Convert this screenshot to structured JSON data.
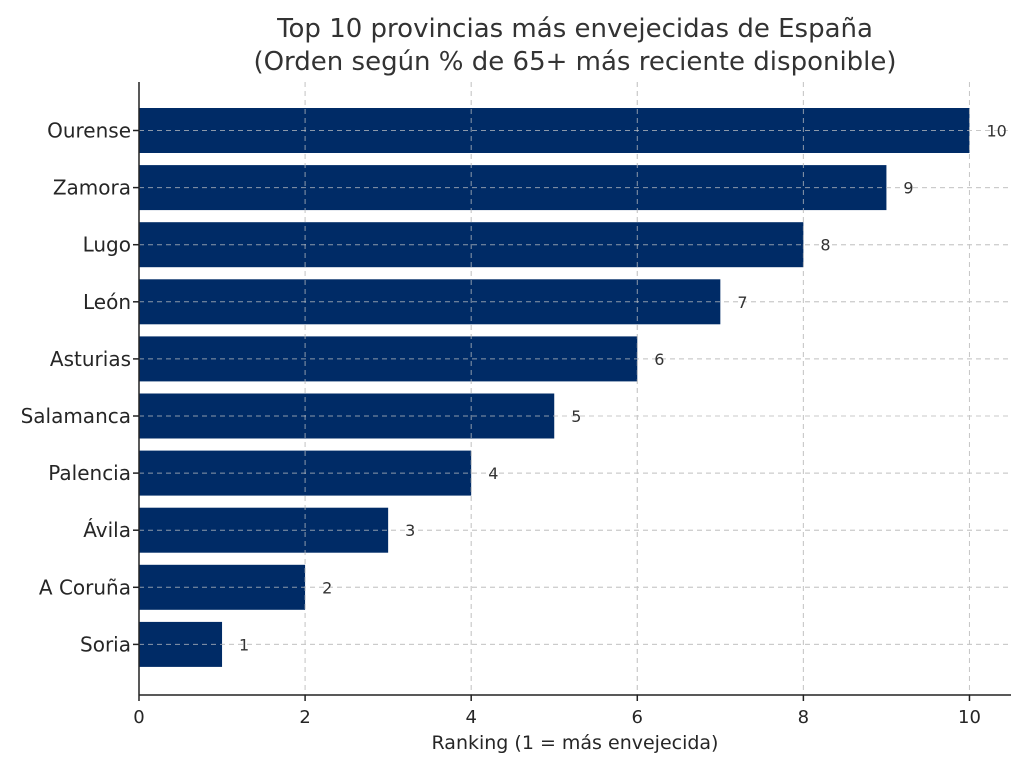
{
  "chart_data": {
    "type": "bar",
    "orientation": "horizontal",
    "title": "Top 10 provincias más envejecidas de España",
    "subtitle": "(Orden según % de 65+ más reciente disponible)",
    "xlabel": "Ranking (1 = más envejecida)",
    "ylabel": "",
    "xlim": [
      0,
      10.5
    ],
    "xticks": [
      0,
      2,
      4,
      6,
      8,
      10
    ],
    "grid": true,
    "bar_color": "#002b66",
    "categories": [
      "Ourense",
      "Zamora",
      "Lugo",
      "León",
      "Asturias",
      "Salamanca",
      "Palencia",
      "Ávila",
      "A Coruña",
      "Soria"
    ],
    "values": [
      10,
      9,
      8,
      7,
      6,
      5,
      4,
      3,
      2,
      1
    ],
    "data_labels": [
      "10",
      "9",
      "8",
      "7",
      "6",
      "5",
      "4",
      "3",
      "2",
      "1"
    ]
  }
}
